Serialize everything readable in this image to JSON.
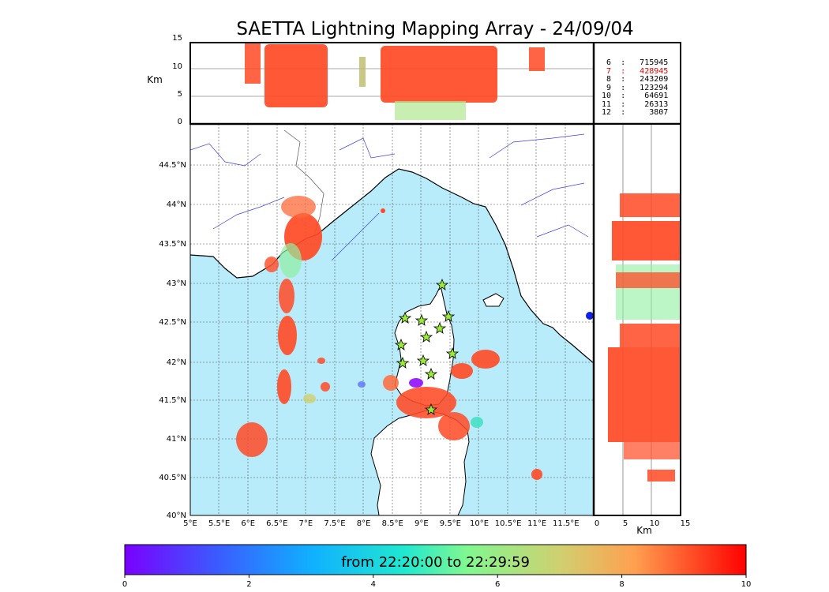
{
  "title": "SAETTA Lightning Mapping Array - 24/09/04",
  "colorbar": {
    "label": "from 22:20:00 to 22:29:59",
    "ticks": [
      "0",
      "2",
      "4",
      "6",
      "8",
      "10"
    ]
  },
  "top_panel": {
    "ylabel": "Km",
    "yticks": [
      "15",
      "10",
      "5",
      "0"
    ]
  },
  "right_panel": {
    "xlabel": "Km",
    "xticks": [
      "0",
      "5",
      "10",
      "15"
    ]
  },
  "map": {
    "lon_ticks": [
      "5°E",
      "5.5°E",
      "6°E",
      "6.5°E",
      "7°E",
      "7.5°E",
      "8°E",
      "8.5°E",
      "9°E",
      "9.5°E",
      "10°E",
      "10.5°E",
      "11°E",
      "11.5°E"
    ],
    "lat_ticks": [
      "44.5°N",
      "44°N",
      "43.5°N",
      "43°N",
      "42.5°N",
      "42°N",
      "41.5°N",
      "41°N",
      "40.5°N",
      "40°N"
    ],
    "sea_color": "#b8ecfa",
    "stations": 12
  },
  "counts": [
    {
      "level": "6",
      "value": "715945",
      "color": "#000000"
    },
    {
      "level": "7",
      "value": "428945",
      "color": "#e00000"
    },
    {
      "level": "8",
      "value": "243209",
      "color": "#000000"
    },
    {
      "level": "9",
      "value": "123294",
      "color": "#000000"
    },
    {
      "level": "10",
      "value": "64691",
      "color": "#000000"
    },
    {
      "level": "11",
      "value": "26313",
      "color": "#000000"
    },
    {
      "level": "12",
      "value": "3807",
      "color": "#000000"
    }
  ]
}
